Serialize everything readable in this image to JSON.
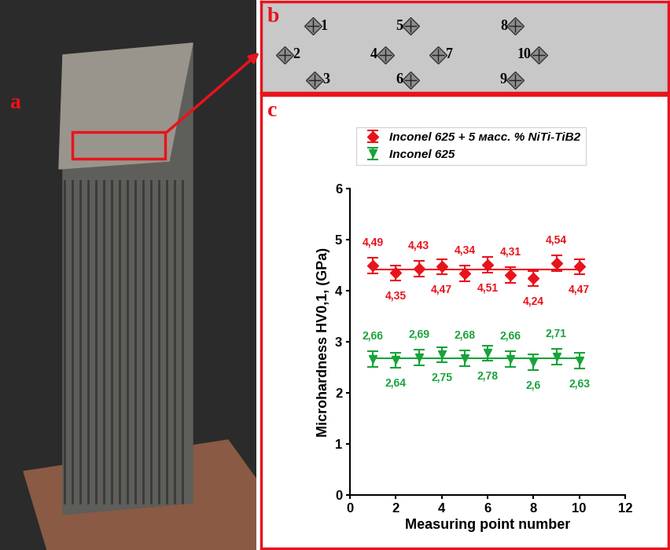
{
  "panel_labels": [
    "a",
    "b",
    "c"
  ],
  "schematic": {
    "points": [
      "1",
      "2",
      "3",
      "4",
      "5",
      "6",
      "7",
      "8",
      "9",
      "10"
    ]
  },
  "chart_data": {
    "type": "line",
    "x": [
      1,
      2,
      3,
      4,
      5,
      6,
      7,
      8,
      9,
      10
    ],
    "xlabel": "Measuring point number",
    "ylabel": "Microhardness HV0,1, (GPa)",
    "xlim": [
      0,
      12
    ],
    "xticks": [
      0,
      2,
      4,
      6,
      8,
      10,
      12
    ],
    "ylim": [
      0,
      6
    ],
    "yticks": [
      0,
      1,
      2,
      3,
      4,
      5,
      6
    ],
    "grid": false,
    "legend": "upper left",
    "data_labels": true,
    "series": [
      {
        "name": "Inconel 625 + 5 масс. % NiTi-TiB2",
        "color": "#e8141c",
        "marker": "diamond",
        "values": [
          4.49,
          4.35,
          4.43,
          4.47,
          4.34,
          4.51,
          4.31,
          4.24,
          4.54,
          4.47
        ],
        "value_labels": [
          "4,49",
          "4,35",
          "4,43",
          "4,47",
          "4,34",
          "4,51",
          "4,31",
          "4,24",
          "4,54",
          "4,47"
        ],
        "errors": [
          0.15,
          0.15,
          0.15,
          0.15,
          0.15,
          0.15,
          0.15,
          0.15,
          0.15,
          0.15
        ],
        "trend": 4.42
      },
      {
        "name": "Inconel 625",
        "color": "#17a33a",
        "marker": "triangle_down",
        "values": [
          2.66,
          2.64,
          2.69,
          2.75,
          2.68,
          2.78,
          2.66,
          2.6,
          2.71,
          2.63
        ],
        "value_labels": [
          "2,66",
          "2,64",
          "2,69",
          "2,75",
          "2,68",
          "2,78",
          "2,66",
          "2,6",
          "2,71",
          "2,63"
        ],
        "errors": [
          0.15,
          0.15,
          0.15,
          0.15,
          0.15,
          0.15,
          0.15,
          0.15,
          0.15,
          0.15
        ],
        "trend": 2.68
      }
    ]
  }
}
